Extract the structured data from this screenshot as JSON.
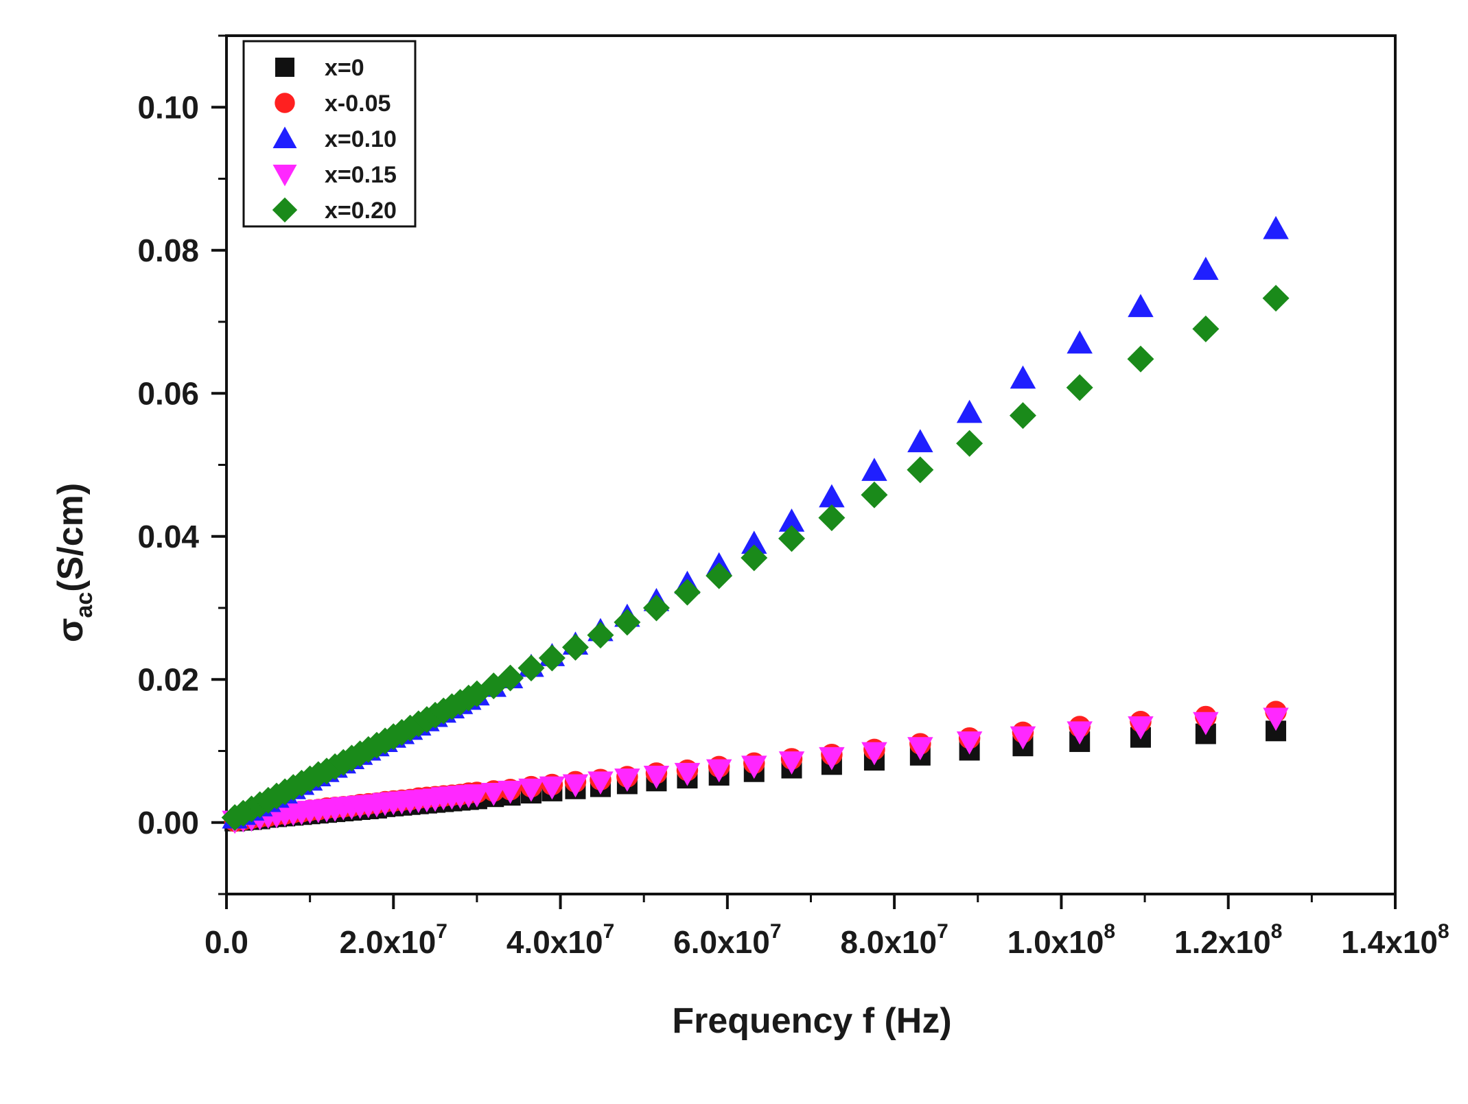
{
  "chart_data": {
    "type": "scatter",
    "title": "",
    "xlabel": "Frequency f (Hz)",
    "ylabel_main": "σ",
    "ylabel_sub": "ac",
    "ylabel_unit": "(S/cm)",
    "xlim": [
      0,
      140000000
    ],
    "ylim": [
      -0.01,
      0.11
    ],
    "legend_position": "top-left",
    "x_ticks": [
      {
        "value": 0,
        "mantissa": "0.0",
        "exponent": ""
      },
      {
        "value": 20000000,
        "mantissa": "2.0x10",
        "exponent": "7"
      },
      {
        "value": 40000000,
        "mantissa": "4.0x10",
        "exponent": "7"
      },
      {
        "value": 60000000,
        "mantissa": "6.0x10",
        "exponent": "7"
      },
      {
        "value": 80000000,
        "mantissa": "8.0x10",
        "exponent": "7"
      },
      {
        "value": 100000000,
        "mantissa": "1.0x10",
        "exponent": "8"
      },
      {
        "value": 120000000,
        "mantissa": "1.2x10",
        "exponent": "8"
      },
      {
        "value": 140000000,
        "mantissa": "1.4x10",
        "exponent": "8"
      }
    ],
    "y_ticks": [
      {
        "value": 0.0,
        "label": "0.00"
      },
      {
        "value": 0.02,
        "label": "0.02"
      },
      {
        "value": 0.04,
        "label": "0.04"
      },
      {
        "value": 0.06,
        "label": "0.06"
      },
      {
        "value": 0.08,
        "label": "0.08"
      },
      {
        "value": 0.1,
        "label": "0.10"
      }
    ],
    "x": [
      1000000,
      2000000,
      3000000,
      4000000,
      5000000,
      6000000,
      7000000,
      8000000,
      9000000,
      10000000,
      11000000,
      12000000,
      13000000,
      14000000,
      15000000,
      16000000,
      17000000,
      18000000,
      19000000,
      20000000,
      21000000,
      22000000,
      23000000,
      24000000,
      25000000,
      26000000,
      27000000,
      28000000,
      29000000,
      30000000,
      32000000,
      34000000,
      36500000,
      39000000,
      41800000,
      44800000,
      48000000,
      51500000,
      55200000,
      59000000,
      63200000,
      67700000,
      72500000,
      77600000,
      83100000,
      89000000,
      95400000,
      102200000,
      109500000,
      117300000,
      125700000
    ],
    "series": [
      {
        "name": "x=0",
        "marker": "square",
        "color": "#111111",
        "values": [
          0.0002,
          0.0003,
          0.0004,
          0.0005,
          0.0007,
          0.0008,
          0.0009,
          0.001,
          0.0011,
          0.0012,
          0.0013,
          0.0014,
          0.0015,
          0.0016,
          0.0017,
          0.0018,
          0.0019,
          0.002,
          0.0022,
          0.0023,
          0.0024,
          0.0025,
          0.0026,
          0.0027,
          0.0028,
          0.0029,
          0.003,
          0.0031,
          0.0032,
          0.0033,
          0.0036,
          0.0038,
          0.0041,
          0.0044,
          0.0047,
          0.005,
          0.0054,
          0.0058,
          0.0062,
          0.0066,
          0.0071,
          0.0076,
          0.0081,
          0.0087,
          0.0094,
          0.0101,
          0.0107,
          0.0113,
          0.0119,
          0.0124,
          0.0128
        ]
      },
      {
        "name": "x-0.05",
        "marker": "circle",
        "color": "#ff2020",
        "values": [
          0.0002,
          0.0004,
          0.0006,
          0.0008,
          0.0009,
          0.0011,
          0.0012,
          0.0014,
          0.0015,
          0.0017,
          0.0018,
          0.002,
          0.0021,
          0.0022,
          0.0023,
          0.0025,
          0.0026,
          0.0027,
          0.0029,
          0.003,
          0.0031,
          0.0032,
          0.0034,
          0.0035,
          0.0036,
          0.0037,
          0.0038,
          0.0039,
          0.0041,
          0.0042,
          0.0044,
          0.0046,
          0.005,
          0.0053,
          0.0057,
          0.006,
          0.0064,
          0.0069,
          0.0073,
          0.0078,
          0.0083,
          0.0089,
          0.0095,
          0.0102,
          0.011,
          0.0118,
          0.0126,
          0.0134,
          0.0141,
          0.0148,
          0.0155
        ]
      },
      {
        "name": "x=0.10",
        "marker": "triangle-up",
        "color": "#1f1fff",
        "values": [
          0.0006,
          0.0011,
          0.0017,
          0.0023,
          0.0029,
          0.0035,
          0.0041,
          0.0047,
          0.0053,
          0.0059,
          0.0065,
          0.0071,
          0.0077,
          0.0083,
          0.0089,
          0.0095,
          0.0101,
          0.0107,
          0.0113,
          0.0119,
          0.0124,
          0.013,
          0.0136,
          0.0142,
          0.0148,
          0.0154,
          0.016,
          0.0166,
          0.0172,
          0.0178,
          0.019,
          0.0202,
          0.0218,
          0.0233,
          0.0249,
          0.0268,
          0.0288,
          0.031,
          0.0334,
          0.036,
          0.039,
          0.0421,
          0.0455,
          0.0492,
          0.0532,
          0.0573,
          0.0621,
          0.067,
          0.0721,
          0.0773,
          0.083
        ]
      },
      {
        "name": "x=0.15",
        "marker": "triangle-down",
        "color": "#ff28ff",
        "values": [
          0.0002,
          0.0004,
          0.0005,
          0.0007,
          0.0009,
          0.001,
          0.0012,
          0.0013,
          0.0014,
          0.0016,
          0.0017,
          0.0018,
          0.0019,
          0.0021,
          0.0022,
          0.0023,
          0.0024,
          0.0025,
          0.0027,
          0.0028,
          0.0029,
          0.003,
          0.0031,
          0.0032,
          0.0033,
          0.0035,
          0.0036,
          0.0037,
          0.0038,
          0.0039,
          0.0041,
          0.0044,
          0.0047,
          0.005,
          0.0053,
          0.0057,
          0.0061,
          0.0065,
          0.0069,
          0.0074,
          0.0079,
          0.0085,
          0.0091,
          0.0098,
          0.0105,
          0.0113,
          0.012,
          0.0127,
          0.0134,
          0.014,
          0.0146
        ]
      },
      {
        "name": "x=0.20",
        "marker": "diamond",
        "color": "#1a8a1a",
        "values": [
          0.0007,
          0.0013,
          0.0019,
          0.0025,
          0.0031,
          0.0037,
          0.0043,
          0.0049,
          0.0055,
          0.0061,
          0.0067,
          0.0072,
          0.0078,
          0.0084,
          0.009,
          0.0096,
          0.0102,
          0.0108,
          0.0114,
          0.012,
          0.0126,
          0.0132,
          0.0138,
          0.0144,
          0.015,
          0.0156,
          0.0162,
          0.0168,
          0.0174,
          0.018,
          0.0191,
          0.0202,
          0.0216,
          0.023,
          0.0245,
          0.0262,
          0.028,
          0.03,
          0.0322,
          0.0345,
          0.037,
          0.0397,
          0.0426,
          0.0458,
          0.0493,
          0.053,
          0.0569,
          0.0608,
          0.0648,
          0.069,
          0.0733
        ]
      }
    ]
  }
}
